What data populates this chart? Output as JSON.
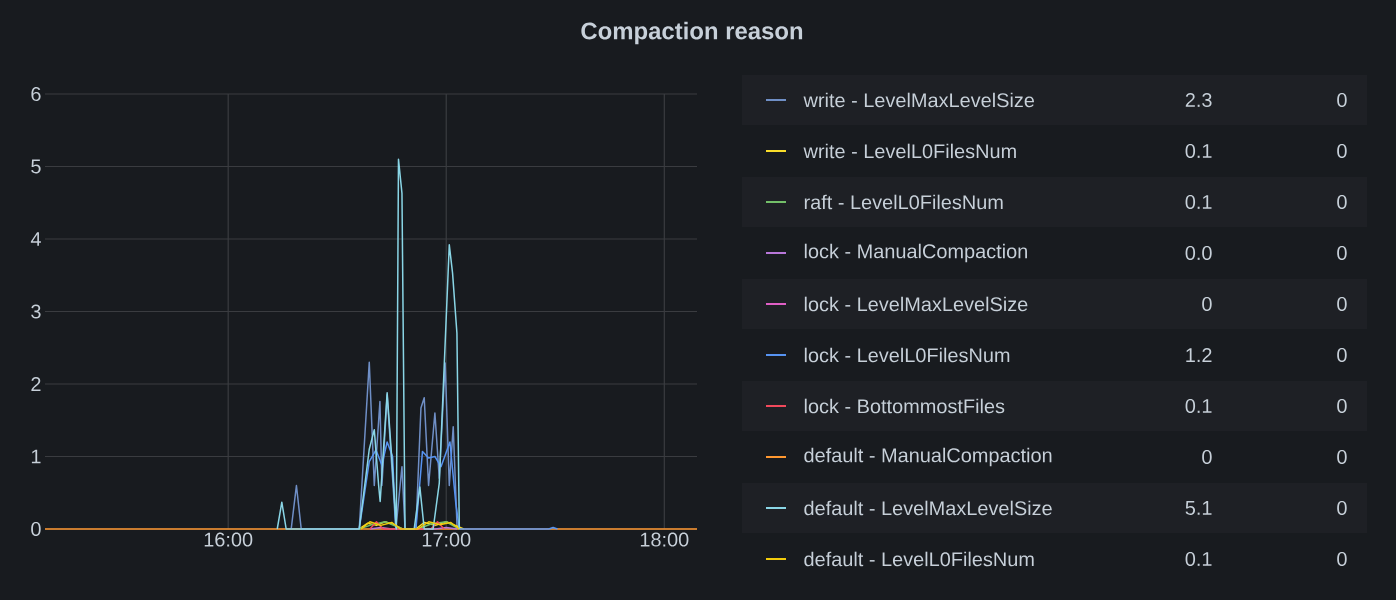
{
  "chart_data": {
    "type": "line",
    "title": "Compaction reason",
    "xlim": [
      15.16,
      18.15
    ],
    "ylim": [
      0,
      6
    ],
    "xticks": [
      {
        "value": 16,
        "label": "16:00"
      },
      {
        "value": 17,
        "label": "17:00"
      },
      {
        "value": 18,
        "label": "18:00"
      }
    ],
    "yticks": [
      0,
      1,
      2,
      3,
      4,
      5,
      6
    ],
    "grid": true,
    "legend": "right",
    "marker": "none",
    "line_style": "solid",
    "series": [
      {
        "name": "write - LevelMaxLevelSize",
        "color": "#6f8fc6",
        "x": [
          16.289,
          16.313,
          16.335,
          16.601,
          16.647,
          16.67,
          16.696,
          16.705,
          16.729,
          16.769,
          16.797,
          16.811,
          16.861,
          16.884,
          16.899,
          16.919,
          16.948,
          16.968,
          16.995,
          17.014,
          17.032,
          17.05
        ],
        "values": [
          0,
          0.6,
          0,
          0,
          2.3,
          0.6,
          1.76,
          0.6,
          1.85,
          0,
          0.86,
          0,
          0,
          1.67,
          1.81,
          0.6,
          1.6,
          0.7,
          2.29,
          0.6,
          1.41,
          0
        ]
      },
      {
        "name": "write - LevelL0FilesNum",
        "color": "#fade2a",
        "x": [
          16.6,
          16.64,
          16.68,
          16.72,
          16.76,
          16.8,
          16.86,
          16.9,
          16.95,
          17.0,
          17.05,
          17.08
        ],
        "values": [
          0,
          0.08,
          0.05,
          0.1,
          0.06,
          0,
          0,
          0.09,
          0.05,
          0.1,
          0.04,
          0
        ]
      },
      {
        "name": "raft - LevelL0FilesNum",
        "color": "#73bf69",
        "x": [
          16.6,
          16.66,
          16.72,
          16.8,
          16.87,
          16.93,
          17.0,
          17.06
        ],
        "values": [
          0,
          0.06,
          0.1,
          0,
          0,
          0.07,
          0.1,
          0
        ]
      },
      {
        "name": "lock - ManualCompaction",
        "color": "#b877d9",
        "x": [
          16.65,
          16.7,
          16.75,
          16.95,
          17.0,
          17.05
        ],
        "values": [
          0,
          0.02,
          0,
          0,
          0.02,
          0
        ]
      },
      {
        "name": "lock - LevelMaxLevelSize",
        "color": "#e05fc6"
      },
      {
        "name": "lock - LevelL0FilesNum",
        "color": "#5794f2",
        "x": [
          16.601,
          16.647,
          16.678,
          16.705,
          16.729,
          16.754,
          16.769,
          16.861,
          16.891,
          16.919,
          16.948,
          16.976,
          17.017,
          17.044,
          17.06,
          17.47,
          17.49,
          17.51
        ],
        "values": [
          0,
          0.93,
          1.09,
          0.88,
          1.2,
          1.0,
          0,
          0,
          1.07,
          0.98,
          1.0,
          0.86,
          1.2,
          0.35,
          0,
          0,
          0.02,
          0
        ]
      },
      {
        "name": "lock - BottommostFiles",
        "color": "#f2495c",
        "x": [
          16.65,
          16.68,
          16.71,
          16.93,
          16.96,
          16.99
        ],
        "values": [
          0,
          0.1,
          0,
          0,
          0.1,
          0
        ]
      },
      {
        "name": "default - ManualCompaction",
        "color": "#ff9830",
        "x": [
          15.16,
          18.15
        ],
        "values": [
          0,
          0
        ]
      },
      {
        "name": "default - LevelMaxLevelSize",
        "color": "#8ad6e6",
        "x": [
          16.225,
          16.246,
          16.266,
          16.601,
          16.647,
          16.67,
          16.69,
          16.697,
          16.729,
          16.752,
          16.771,
          16.781,
          16.797,
          16.811,
          16.853,
          16.879,
          16.899,
          16.94,
          16.968,
          17.014,
          17.029,
          17.049,
          17.06
        ],
        "values": [
          0,
          0.37,
          0,
          0,
          1.1,
          1.37,
          0.6,
          0.38,
          1.88,
          0.9,
          0,
          5.1,
          4.63,
          0,
          0,
          0.58,
          0,
          0,
          0.63,
          3.92,
          3.53,
          2.7,
          0
        ]
      },
      {
        "name": "default - LevelL0FilesNum",
        "color": "#f2cc0c",
        "x": [
          16.61,
          16.65,
          16.7,
          16.75,
          16.79,
          16.87,
          16.92,
          16.97,
          17.02,
          17.06
        ],
        "values": [
          0,
          0.1,
          0.05,
          0.09,
          0,
          0,
          0.1,
          0.06,
          0.09,
          0
        ]
      }
    ],
    "annotations": [
      "2.3",
      "0",
      "0.1",
      "0",
      "0.1",
      "0",
      "0.0",
      "0",
      "0",
      "0",
      "1.2",
      "0",
      "0.1",
      "0",
      "0",
      "0",
      "5.1",
      "0",
      "0.1",
      "0"
    ]
  }
}
